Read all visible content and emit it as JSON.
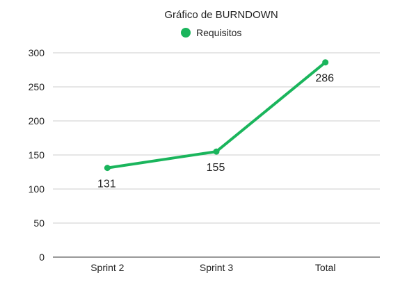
{
  "chart_data": {
    "type": "line",
    "title": "Gráfico de BURNDOWN",
    "categories": [
      "Sprint 2",
      "Sprint 3",
      "Total"
    ],
    "series": [
      {
        "name": "Requisitos",
        "values": [
          131,
          155,
          286
        ],
        "color": "#1ab55c"
      }
    ],
    "ylim": [
      0,
      300
    ],
    "yticks": [
      0,
      50,
      100,
      150,
      200,
      250,
      300
    ],
    "grid": true,
    "legend": "top-center",
    "data_labels": true
  }
}
